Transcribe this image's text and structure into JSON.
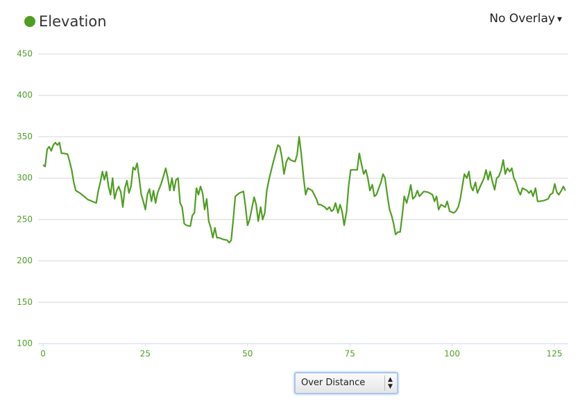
{
  "chart_data": {
    "type": "line",
    "title": "Elevation",
    "overlay": "No Overlay",
    "x_mode": "Over Distance",
    "color": "#4f9e22",
    "xlim": [
      -1.2,
      128.4
    ],
    "xticks": [
      0,
      25,
      50,
      75,
      100,
      125
    ],
    "ylim": [
      100,
      450
    ],
    "yticks": [
      100,
      150,
      200,
      250,
      300,
      350,
      400,
      450
    ],
    "grid": true,
    "x": [
      0,
      0.5,
      1,
      1.5,
      2,
      2.5,
      3,
      3.5,
      4,
      4.5,
      5,
      6,
      6.5,
      7,
      7.5,
      8,
      9,
      10,
      11,
      12,
      13,
      13.5,
      14,
      14.5,
      15,
      15.5,
      16,
      16.5,
      17,
      17.5,
      18,
      18.5,
      19,
      19.5,
      20,
      20.5,
      21,
      21.5,
      22,
      22.5,
      23,
      23.5,
      24,
      24.5,
      25,
      25.5,
      26,
      26.5,
      27,
      27.5,
      28,
      29,
      30,
      30.5,
      31,
      31.5,
      32,
      32.5,
      33,
      33.5,
      34,
      34.5,
      35,
      36,
      36.5,
      37,
      37.5,
      38,
      38.5,
      39,
      39.5,
      40,
      40.5,
      41,
      41.5,
      42,
      42.5,
      43,
      44,
      45,
      45.5,
      46,
      46.5,
      47,
      48,
      49,
      49.5,
      50,
      50.5,
      51.1,
      51.6,
      52.1,
      52.6,
      53.2,
      53.7,
      54.2,
      54.7,
      55.3,
      56.3,
      57.4,
      57.9,
      58.4,
      58.9,
      59.5,
      60,
      60.5,
      61.6,
      62.1,
      62.6,
      63.1,
      63.7,
      64.2,
      64.7,
      65.8,
      66.3,
      66.8,
      67.3,
      67.9,
      68.9,
      69.4,
      70,
      70.5,
      71,
      71.5,
      72.1,
      72.6,
      73.1,
      73.6,
      74.2,
      74.7,
      75.2,
      76.3,
      76.8,
      77.3,
      77.8,
      78.4,
      78.9,
      79.4,
      79.9,
      80.5,
      81,
      81.5,
      82.6,
      83.1,
      83.6,
      84.1,
      84.7,
      85.2,
      85.7,
      86.2,
      86.8,
      87.3,
      87.8,
      88.3,
      88.9,
      89.4,
      89.9,
      90.4,
      91,
      91.5,
      92,
      93.1,
      94.1,
      95.2,
      95.7,
      96.2,
      96.7,
      97.3,
      98.3,
      98.8,
      99.4,
      100.4,
      100.9,
      101.5,
      102,
      102.5,
      103,
      103.6,
      104.1,
      104.6,
      105.1,
      105.7,
      106.2,
      106.7,
      107.8,
      108.3,
      108.8,
      109.3,
      109.9,
      110.4,
      110.9,
      111.4,
      112,
      112.5,
      113,
      113.5,
      114.1,
      114.6,
      115.1,
      115.6,
      116.2,
      116.7,
      117.2,
      118.3,
      118.8,
      119.3,
      119.8,
      120.4,
      120.9,
      121.4,
      122.5,
      123.5,
      124,
      124.6,
      125.1,
      125.6,
      126.1,
      126.7,
      127.2,
      127.7
    ],
    "values": [
      316,
      314,
      335,
      338,
      333,
      340,
      343,
      340,
      343,
      330,
      330,
      329,
      320,
      310,
      295,
      285,
      282,
      278,
      274,
      272,
      270,
      285,
      295,
      308,
      298,
      308,
      290,
      280,
      300,
      275,
      285,
      290,
      283,
      265,
      288,
      297,
      282,
      290,
      313,
      310,
      318,
      300,
      280,
      272,
      262,
      280,
      287,
      272,
      285,
      270,
      282,
      295,
      312,
      300,
      285,
      300,
      285,
      298,
      300,
      270,
      265,
      245,
      243,
      242,
      255,
      258,
      288,
      280,
      290,
      282,
      262,
      275,
      248,
      240,
      228,
      240,
      228,
      228,
      226,
      225,
      222,
      225,
      250,
      278,
      282,
      284,
      265,
      243,
      250,
      265,
      277,
      268,
      248,
      265,
      250,
      258,
      285,
      300,
      320,
      340,
      338,
      325,
      305,
      320,
      325,
      322,
      320,
      328,
      350,
      330,
      300,
      280,
      288,
      285,
      280,
      275,
      268,
      268,
      265,
      262,
      265,
      260,
      262,
      270,
      258,
      268,
      260,
      243,
      260,
      290,
      310,
      310,
      310,
      330,
      318,
      305,
      310,
      300,
      285,
      292,
      278,
      280,
      295,
      305,
      300,
      282,
      262,
      255,
      245,
      232,
      235,
      235,
      255,
      278,
      270,
      280,
      292,
      275,
      278,
      285,
      278,
      284,
      283,
      280,
      272,
      278,
      262,
      268,
      265,
      272,
      260,
      258,
      260,
      265,
      275,
      290,
      305,
      300,
      308,
      290,
      285,
      295,
      282,
      288,
      300,
      310,
      298,
      308,
      295,
      286,
      300,
      302,
      310,
      322,
      305,
      312,
      308,
      312,
      300,
      295,
      285,
      280,
      288,
      285,
      282,
      285,
      278,
      288,
      272,
      272,
      273,
      275,
      280,
      282,
      293,
      283,
      280,
      285,
      290,
      285
    ]
  }
}
